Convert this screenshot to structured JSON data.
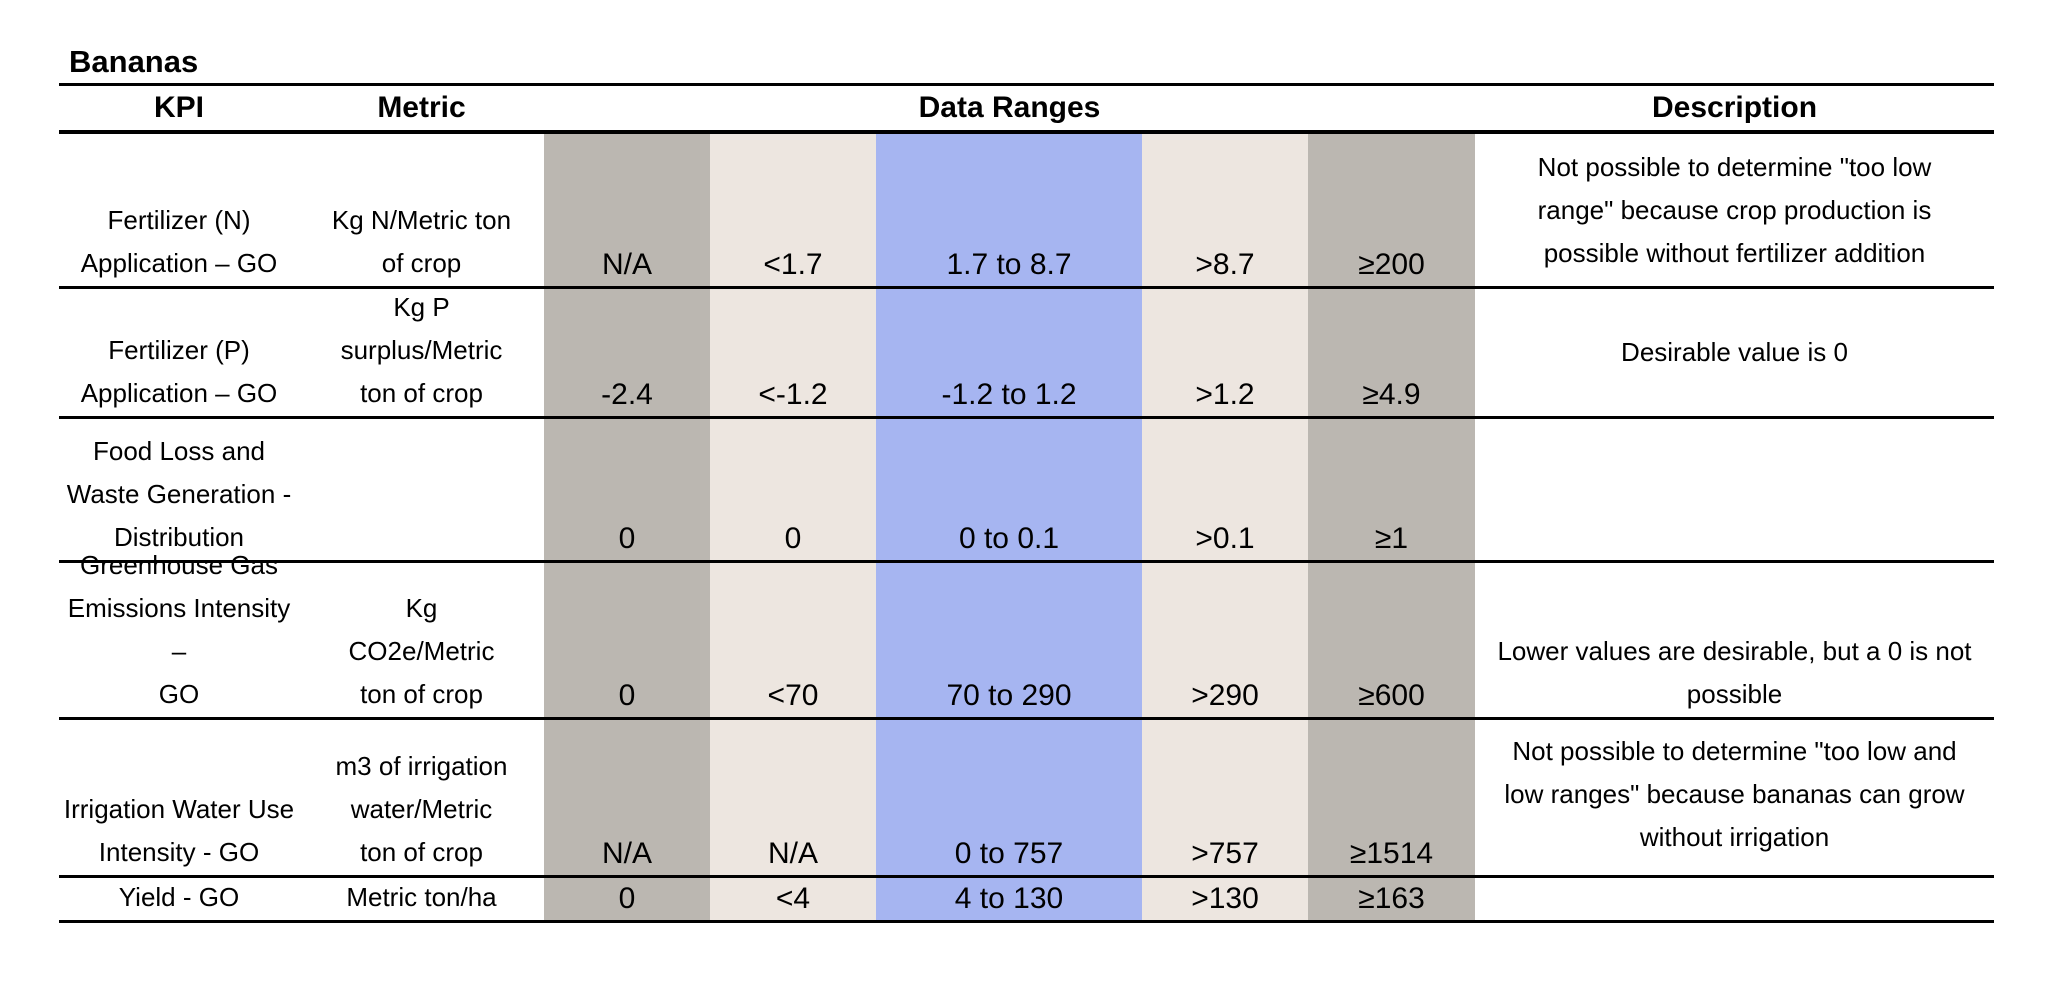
{
  "title": "Bananas",
  "headers": {
    "kpi": "KPI",
    "metric": "Metric",
    "ranges": "Data Ranges",
    "description": "Description"
  },
  "rows": [
    {
      "kpi": [
        "Fertilizer (N)",
        "Application – GO"
      ],
      "metric": [
        "Kg N/Metric ton",
        "of crop"
      ],
      "ranges": [
        "N/A",
        "<1.7",
        "1.7 to 8.7",
        ">8.7",
        "≥200"
      ],
      "description": [
        "Not possible to determine \"too low",
        "range\" because crop production is",
        "possible without fertilizer addition"
      ]
    },
    {
      "kpi": [
        "Fertilizer (P)",
        "Application – GO"
      ],
      "metric": [
        "Kg P",
        "surplus/Metric",
        "ton of crop"
      ],
      "ranges": [
        "-2.4",
        "<-1.2",
        "-1.2 to 1.2",
        ">1.2",
        "≥4.9"
      ],
      "description": [
        "Desirable value is 0"
      ]
    },
    {
      "kpi": [
        "Food Loss and",
        "Waste Generation -",
        "Distribution"
      ],
      "metric": [],
      "ranges": [
        "0",
        "0",
        "0 to 0.1",
        ">0.1",
        "≥1"
      ],
      "description": []
    },
    {
      "kpi": [
        "Greenhouse Gas",
        "Emissions Intensity –",
        "GO"
      ],
      "metric": [
        "Kg",
        "CO2e/Metric",
        "ton of crop"
      ],
      "ranges": [
        "0",
        "<70",
        "70 to 290",
        ">290",
        "≥600"
      ],
      "description": [
        "Lower values are desirable, but a 0 is not",
        "possible"
      ]
    },
    {
      "kpi": [
        "Irrigation Water Use",
        "Intensity - GO"
      ],
      "metric": [
        "m3 of irrigation",
        "water/Metric",
        "ton of crop"
      ],
      "ranges": [
        "N/A",
        "N/A",
        "0 to 757",
        ">757",
        "≥1514"
      ],
      "description": [
        "Not possible to determine \"too low and",
        "low ranges\" because bananas can grow",
        "without irrigation"
      ]
    },
    {
      "kpi": [
        "Yield - GO"
      ],
      "metric": [
        "Metric ton/ha"
      ],
      "ranges": [
        "0",
        "<4",
        "4  to 130",
        ">130",
        "≥163"
      ],
      "description": []
    }
  ]
}
